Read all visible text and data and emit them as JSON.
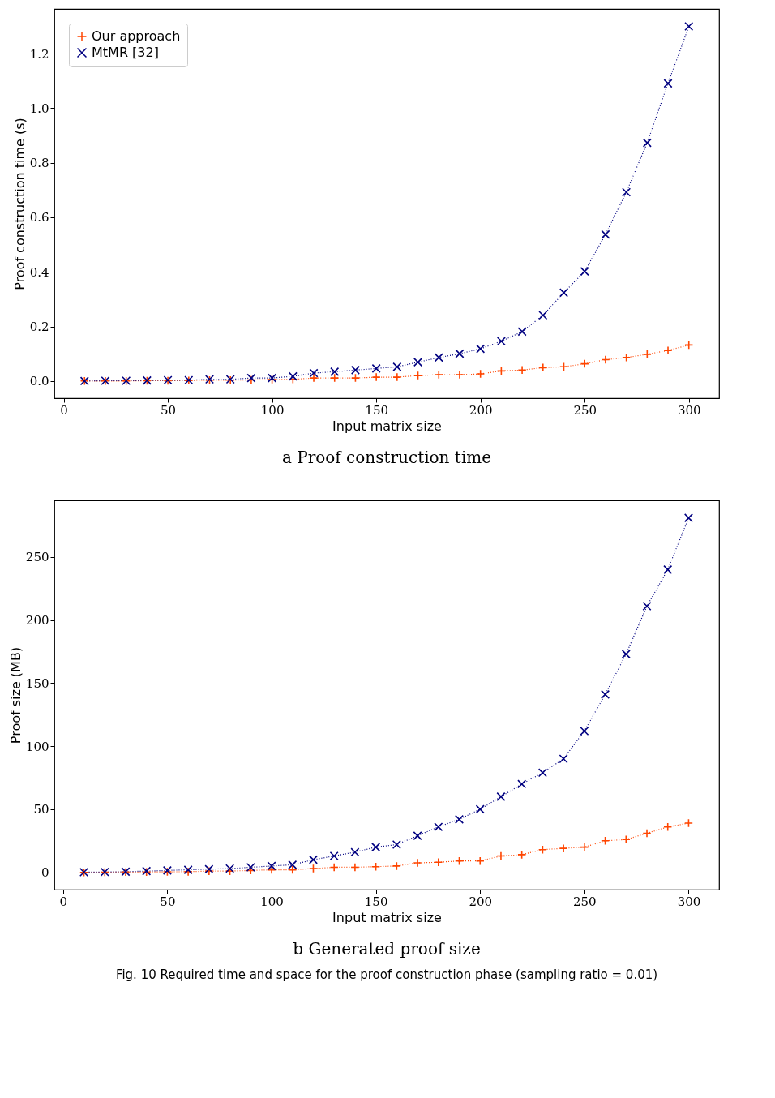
{
  "chart_data": [
    {
      "type": "line",
      "title": "a Proof construction time",
      "xlabel": "Input matrix size",
      "ylabel": "Proof construction time (s)",
      "x": [
        10,
        20,
        30,
        40,
        50,
        60,
        70,
        80,
        90,
        100,
        110,
        120,
        130,
        140,
        150,
        160,
        170,
        180,
        190,
        200,
        210,
        220,
        230,
        240,
        250,
        260,
        270,
        280,
        290,
        300
      ],
      "series": [
        {
          "name": "Our approach",
          "color": "#ff4500",
          "marker": "cross",
          "values": [
            0.0,
            0.0,
            0.0,
            0.001,
            0.001,
            0.002,
            0.003,
            0.003,
            0.004,
            0.005,
            0.006,
            0.011,
            0.011,
            0.011,
            0.014,
            0.014,
            0.02,
            0.023,
            0.023,
            0.026,
            0.037,
            0.04,
            0.049,
            0.052,
            0.063,
            0.078,
            0.086,
            0.098,
            0.112,
            0.132
          ]
        },
        {
          "name": "MtMR [32]",
          "color": "#000080",
          "marker": "x",
          "values": [
            0.0,
            0.001,
            0.001,
            0.002,
            0.003,
            0.003,
            0.006,
            0.006,
            0.011,
            0.011,
            0.017,
            0.029,
            0.034,
            0.04,
            0.046,
            0.052,
            0.069,
            0.086,
            0.1,
            0.118,
            0.146,
            0.181,
            0.241,
            0.324,
            0.402,
            0.537,
            0.692,
            0.873,
            1.091,
            1.3
          ]
        }
      ],
      "xlim": [
        -4.5,
        314.5
      ],
      "ylim": [
        -0.063,
        1.364
      ],
      "xticks": [
        0,
        50,
        100,
        150,
        200,
        250,
        300
      ],
      "yticks": [
        {
          "value": 0,
          "label": "0.0"
        },
        0.2,
        0.4,
        0.6,
        0.8,
        {
          "value": 1,
          "label": "1.0"
        },
        1.2
      ],
      "legend": "top left",
      "line_style": "dotted",
      "grid": false
    },
    {
      "type": "line",
      "title": "b Generated proof size",
      "xlabel": "Input matrix size",
      "ylabel": "Proof size (MB)",
      "annotations": [
        "Fig. 10  Required time and space for the proof construction phase (sampling ratio = 0.01)"
      ],
      "x": [
        10,
        20,
        30,
        40,
        50,
        60,
        70,
        80,
        90,
        100,
        110,
        120,
        130,
        140,
        150,
        160,
        170,
        180,
        190,
        200,
        210,
        220,
        230,
        240,
        250,
        260,
        270,
        280,
        290,
        300
      ],
      "series": [
        {
          "name": "Our approach",
          "color": "#ff4500",
          "marker": "cross",
          "values": [
            0.0,
            0.1,
            0.2,
            0.3,
            0.4,
            0.5,
            1,
            1,
            1.5,
            2,
            2,
            3,
            4,
            4,
            4.5,
            5,
            7.5,
            8,
            9,
            9,
            13,
            14,
            18,
            19,
            20,
            25,
            26,
            31,
            36,
            39
          ]
        },
        {
          "name": "MtMR [32]",
          "color": "#000080",
          "marker": "x",
          "values": [
            0.1,
            0.3,
            0.5,
            1,
            1.5,
            2,
            2.5,
            3,
            4,
            5,
            6,
            10,
            13,
            16,
            20,
            22,
            29,
            36,
            42,
            50,
            60,
            70,
            79,
            90,
            112,
            141,
            173,
            211,
            240,
            281
          ]
        }
      ],
      "xlim": [
        -4.2,
        314.6
      ],
      "ylim": [
        -13.7,
        294.9
      ],
      "xticks": [
        0,
        50,
        100,
        150,
        200,
        250,
        300
      ],
      "yticks": [
        0,
        50,
        100,
        150,
        200,
        250
      ],
      "legend": "top left",
      "line_style": "dotted",
      "grid": false
    }
  ]
}
